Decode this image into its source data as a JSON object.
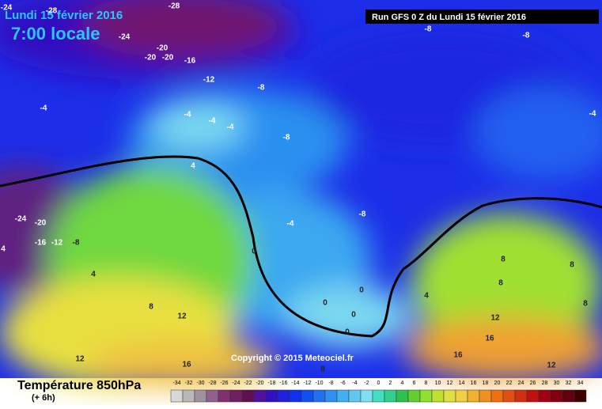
{
  "header": {
    "date": "Lundi 15 février 2016",
    "time": "7:00 locale",
    "run": "Run GFS 0 Z du Lundi 15 février 2016",
    "copyright": "Copyright © 2015 Meteociel.fr"
  },
  "contour_labels": [
    "-24",
    "-28",
    "-28",
    "-24",
    "-20",
    "-20",
    "-20",
    "-16",
    "-12",
    "-8",
    "-8",
    "-8",
    "-4",
    "-4",
    "-4",
    "-4",
    "-8",
    "-4",
    "4",
    "-24",
    "-20",
    "-16",
    "-12",
    "-8",
    "-4",
    "-8",
    "0",
    "4",
    "8",
    "8",
    "8",
    "0",
    "4",
    "8",
    "8",
    "12",
    "0",
    "0",
    "0",
    "12",
    "16",
    "16",
    "12",
    "16",
    "8",
    "12",
    "4"
  ],
  "legend": {
    "title": "Température 850hPa",
    "subtitle": "(+ 6h)",
    "ticks": [
      -34,
      -32,
      -30,
      -28,
      -26,
      -24,
      -22,
      -20,
      -18,
      -16,
      -14,
      -12,
      -10,
      -8,
      -6,
      -4,
      -2,
      0,
      2,
      4,
      6,
      8,
      10,
      12,
      14,
      16,
      18,
      20,
      22,
      24,
      26,
      28,
      30,
      32,
      34
    ],
    "colors": [
      "#d8d8d8",
      "#b8b8b8",
      "#a090a0",
      "#906090",
      "#803070",
      "#702060",
      "#601050",
      "#5010a0",
      "#3010c0",
      "#2020e0",
      "#1030f0",
      "#1050f0",
      "#2070f0",
      "#3090f0",
      "#40b0f0",
      "#60c8f0",
      "#80e0f0",
      "#40e0c0",
      "#30d090",
      "#30c050",
      "#60d030",
      "#90e030",
      "#c0e030",
      "#e0e040",
      "#f0d040",
      "#f0b030",
      "#f09020",
      "#f07010",
      "#e05010",
      "#d03010",
      "#c01010",
      "#a00010",
      "#800010",
      "#600010",
      "#400000"
    ]
  }
}
